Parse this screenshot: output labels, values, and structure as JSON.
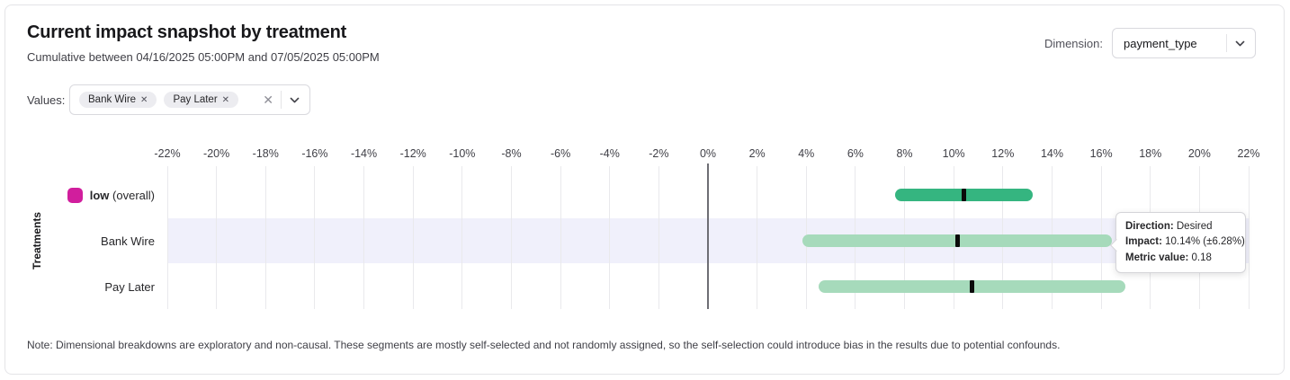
{
  "header": {
    "title": "Current impact snapshot by treatment",
    "subtitle": "Cumulative between 04/16/2025 05:00PM and 07/05/2025 05:00PM",
    "dimension_label": "Dimension:",
    "dimension_value": "payment_type"
  },
  "filters": {
    "values_label": "Values:",
    "chips": [
      {
        "label": "Bank Wire",
        "remove_icon": "✕"
      },
      {
        "label": "Pay Later",
        "remove_icon": "✕"
      }
    ],
    "clear_icon": "✕"
  },
  "chart_data": {
    "type": "bar",
    "subtype": "horizontal_interval",
    "title": "",
    "xlabel": "",
    "ylabel": "Treatments",
    "x_axis": {
      "unit": "%",
      "min": -22,
      "max": 22,
      "tick_step": 2,
      "ticks": [
        -22,
        -20,
        -18,
        -16,
        -14,
        -12,
        -10,
        -8,
        -6,
        -4,
        -2,
        0,
        2,
        4,
        6,
        8,
        10,
        12,
        14,
        16,
        18,
        20,
        22
      ],
      "tick_labels": [
        "-22%",
        "-20%",
        "-18%",
        "-16%",
        "-14%",
        "-12%",
        "-10%",
        "-8%",
        "-6%",
        "-4%",
        "-2%",
        "0%",
        "2%",
        "4%",
        "6%",
        "8%",
        "10%",
        "12%",
        "14%",
        "16%",
        "18%",
        "20%",
        "22%"
      ]
    },
    "rows": [
      {
        "label": "low",
        "label_note": "(overall)",
        "swatch_color": "#d11e9d",
        "bar_color": "#35b580",
        "impact_pct": 10.4,
        "ci_pct": 2.8,
        "highlighted": false
      },
      {
        "label": "Bank Wire",
        "label_note": "",
        "swatch_color": null,
        "bar_color": "#a6dabb",
        "impact_pct": 10.14,
        "ci_pct": 6.28,
        "highlighted": true
      },
      {
        "label": "Pay Later",
        "label_note": "",
        "swatch_color": null,
        "bar_color": "#a6dabb",
        "impact_pct": 10.75,
        "ci_pct": 6.25,
        "highlighted": false
      }
    ],
    "colors": {
      "overall_bar": "#35b580",
      "segment_bar": "#a6dabb",
      "legend_swatch": "#d11e9d",
      "highlight_band": "#f0f0fb",
      "center_tick": "#0b0b0b"
    },
    "grid": true,
    "legend_position": "row-label"
  },
  "tooltip": {
    "rows": [
      {
        "label": "Direction:",
        "value": "Desired"
      },
      {
        "label": "Impact:",
        "value": "10.14% (±6.28%)"
      },
      {
        "label": "Metric value:",
        "value": "0.18"
      }
    ]
  },
  "note": "Note: Dimensional breakdowns are exploratory and non-causal. These segments are mostly self-selected and not randomly assigned, so the self-selection could introduce bias in the results due to potential confounds."
}
